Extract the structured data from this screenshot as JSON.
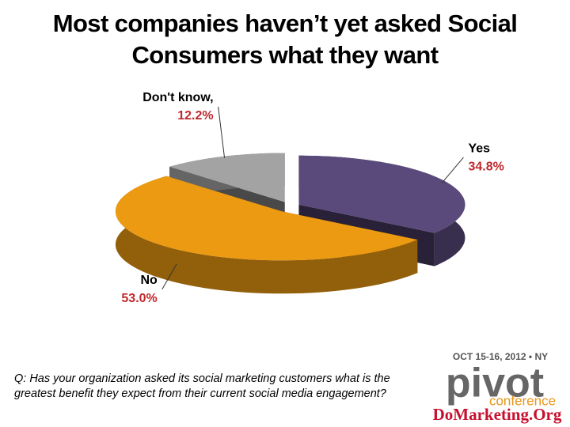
{
  "chart_data": {
    "type": "pie",
    "title": "Most companies haven’t yet asked Social Consumers what they want",
    "categories": [
      "Yes",
      "No",
      "Don't know,"
    ],
    "values": [
      34.8,
      53.0,
      12.2
    ],
    "value_labels": [
      "34.8%",
      "53.0%",
      "12.2%"
    ],
    "colors": [
      "#5a4a7c",
      "#ec9a12",
      "#a3a3a3"
    ],
    "annotation": "Q: Has your organization asked its social marketing customers what is the greatest benefit they expect from their current social media engagement?"
  },
  "logo": {
    "date": "OCT 15-16, 2012 • NY",
    "name": "pivot",
    "subtitle": "conference",
    "site": "DoMarketing.Org"
  }
}
